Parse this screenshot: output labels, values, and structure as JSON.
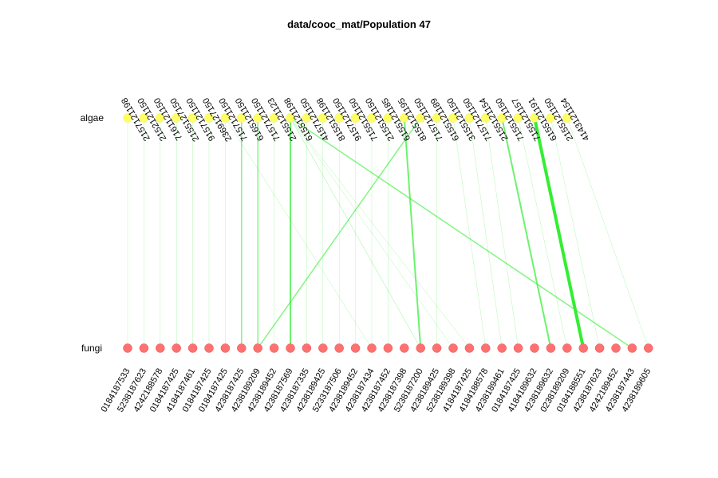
{
  "chart_data": {
    "type": "bipartite-network",
    "title": "data/cooc_mat/Population 47",
    "rows": [
      {
        "name": "algae",
        "color": "#ffff66",
        "stroke": "#f0f04a"
      },
      {
        "name": "fungi",
        "color": "#ff7070",
        "stroke": "#e05a5a"
      }
    ],
    "edge_color": "#33ee33",
    "top_nodes": [
      "2157121198",
      "2152121150",
      "7161121150",
      "2155127150",
      "9157121150",
      "2369127150",
      "7157121150",
      "6165121150",
      "7157121150",
      "2155121123",
      "6155121198",
      "4157121150",
      "8155121198",
      "9157121150",
      "7155121150",
      "2155121150",
      "6155121185",
      "8155121195",
      "7157121150",
      "6155121189",
      "3155121150",
      "7157121150",
      "2155121154",
      "7155121150",
      "7155121157",
      "6155121191",
      "2155121150",
      "4143121154"
    ],
    "bottom_nodes": [
      "0184187533",
      "5238187623",
      "4242188578",
      "0184187425",
      "4184187461",
      "0184187425",
      "0184187425",
      "4238187425",
      "4238189209",
      "4238189452",
      "4238187569",
      "4238187335",
      "4238189425",
      "5233187506",
      "4238189452",
      "4238187434",
      "4238187452",
      "4238187398",
      "5238187200",
      "4238189425",
      "5238189398",
      "4184187425",
      "4184188578",
      "4238189461",
      "0184187425",
      "4184189632",
      "4238189632",
      "0238189209",
      "0184188551",
      "4238187623",
      "4242189452",
      "4238187443",
      "4238189605"
    ],
    "edges": [
      {
        "from": 0,
        "to": 0,
        "weight": 0.5
      },
      {
        "from": 1,
        "to": 1,
        "weight": 0.5
      },
      {
        "from": 2,
        "to": 2,
        "weight": 0.5
      },
      {
        "from": 3,
        "to": 3,
        "weight": 0.5
      },
      {
        "from": 4,
        "to": 4,
        "weight": 0.5
      },
      {
        "from": 5,
        "to": 5,
        "weight": 0.5
      },
      {
        "from": 6,
        "to": 6,
        "weight": 0.5
      },
      {
        "from": 7,
        "to": 7,
        "weight": 1.5
      },
      {
        "from": 8,
        "to": 8,
        "weight": 1.5
      },
      {
        "from": 9,
        "to": 9,
        "weight": 0.5
      },
      {
        "from": 10,
        "to": 10,
        "weight": 2
      },
      {
        "from": 10,
        "to": 31,
        "weight": 1.5
      },
      {
        "from": 10,
        "to": 18,
        "weight": 0.6
      },
      {
        "from": 10,
        "to": 20,
        "weight": 0.5
      },
      {
        "from": 10,
        "to": 21,
        "weight": 0.5
      },
      {
        "from": 6,
        "to": 15,
        "weight": 0.5
      },
      {
        "from": 11,
        "to": 11,
        "weight": 0.5
      },
      {
        "from": 12,
        "to": 12,
        "weight": 0.5
      },
      {
        "from": 13,
        "to": 13,
        "weight": 0.5
      },
      {
        "from": 14,
        "to": 14,
        "weight": 0.5
      },
      {
        "from": 15,
        "to": 15,
        "weight": 0.5
      },
      {
        "from": 16,
        "to": 16,
        "weight": 0.5
      },
      {
        "from": 17,
        "to": 18,
        "weight": 2
      },
      {
        "from": 18,
        "to": 8,
        "weight": 1.5
      },
      {
        "from": 19,
        "to": 19,
        "weight": 0.5
      },
      {
        "from": 20,
        "to": 22,
        "weight": 0.5
      },
      {
        "from": 21,
        "to": 23,
        "weight": 0.5
      },
      {
        "from": 22,
        "to": 24,
        "weight": 0.5
      },
      {
        "from": 23,
        "to": 26,
        "weight": 2
      },
      {
        "from": 24,
        "to": 27,
        "weight": 0.5
      },
      {
        "from": 25,
        "to": 28,
        "weight": 4
      },
      {
        "from": 26,
        "to": 29,
        "weight": 0.5
      },
      {
        "from": 27,
        "to": 32,
        "weight": 0.5
      }
    ]
  }
}
